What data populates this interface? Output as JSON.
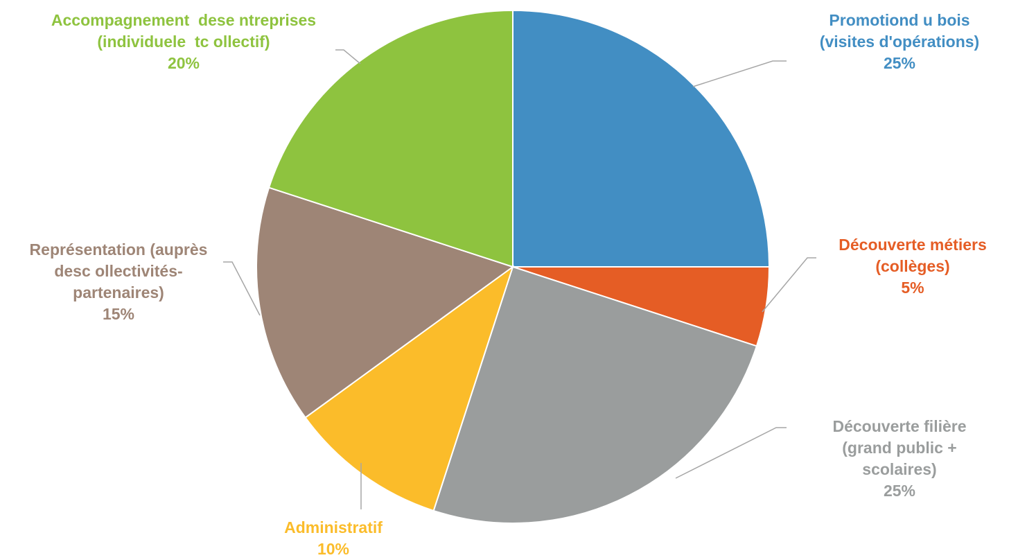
{
  "chart_data": {
    "type": "pie",
    "title": "",
    "start": "top",
    "direction": "clockwise",
    "slices": [
      {
        "label_lines": [
          "Promotiond u bois",
          "(visites d'opérations)"
        ],
        "value": 25,
        "value_label": "25%",
        "color": "#428EC3"
      },
      {
        "label_lines": [
          "Découverte métiers",
          "(collèges)"
        ],
        "value": 5,
        "value_label": "5%",
        "color": "#E55D25"
      },
      {
        "label_lines": [
          "Découverte filière",
          "(grand public +",
          "scolaires)"
        ],
        "value": 25,
        "value_label": "25%",
        "color": "#9A9D9D"
      },
      {
        "label_lines": [
          "Administratif"
        ],
        "value": 10,
        "value_label": "10%",
        "color": "#FBBC2A"
      },
      {
        "label_lines": [
          "Représentation (auprès",
          "desc ollectivités-",
          "partenaires)"
        ],
        "value": 15,
        "value_label": "15%",
        "color": "#9E8576"
      },
      {
        "label_lines": [
          "Accompagnement  dese ntreprises",
          "(individuele  tc ollectif)"
        ],
        "value": 20,
        "value_label": "20%",
        "color": "#8EC33F"
      }
    ]
  }
}
